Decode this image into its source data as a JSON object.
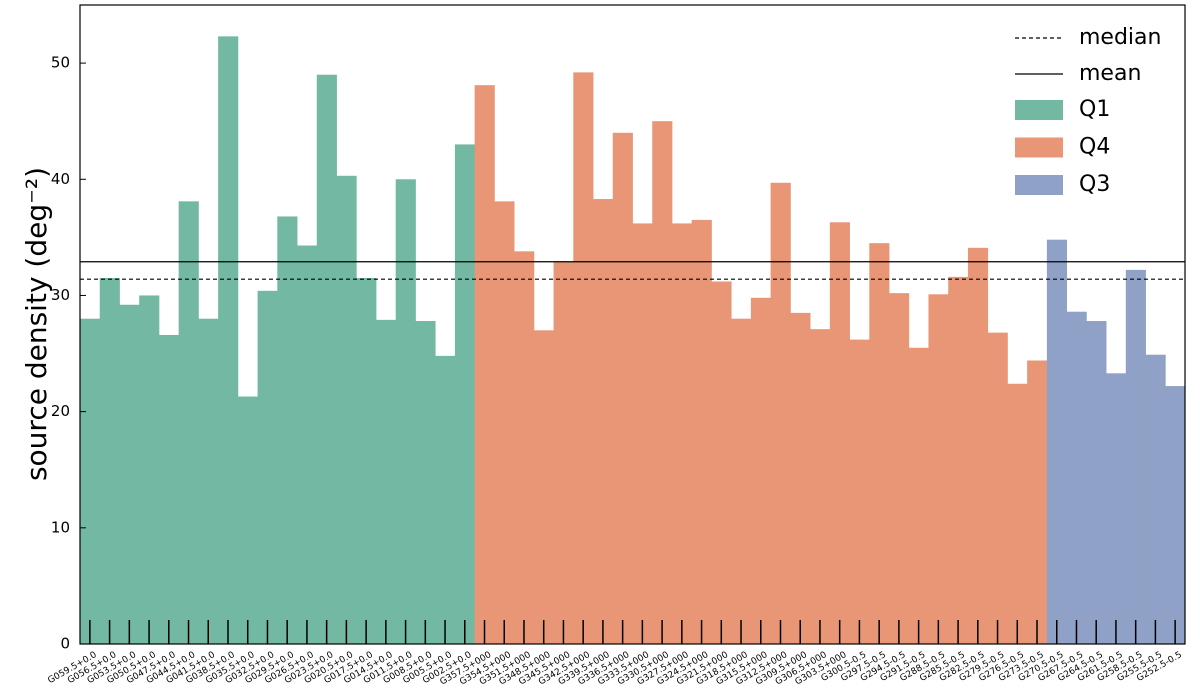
{
  "chart_data": {
    "type": "bar",
    "ylabel": "source density (deg⁻²)",
    "categories": [
      "G059.5+0.0",
      "G056.5+0.0",
      "G053.5+0.0",
      "G050.5+0.0",
      "G047.5+0.0",
      "G044.5+0.0",
      "G041.5+0.0",
      "G038.5+0.0",
      "G035.5+0.0",
      "G032.5+0.0",
      "G029.5+0.0",
      "G026.5+0.0",
      "G023.5+0.0",
      "G020.5+0.0",
      "G017.5+0.0",
      "G014.5+0.0",
      "G011.5+0.0",
      "G008.5+0.0",
      "G005.5+0.0",
      "G002.5+0.0",
      "G357.5+000",
      "G354.5+000",
      "G351.5+000",
      "G348.5+000",
      "G345.5+000",
      "G342.5+000",
      "G339.5+000",
      "G336.5+000",
      "G333.5+000",
      "G330.5+000",
      "G327.5+000",
      "G324.5+000",
      "G321.5+000",
      "G318.5+000",
      "G315.5+000",
      "G312.5+000",
      "G309.5+000",
      "G306.5+000",
      "G303.5+000",
      "G300.5-0.5",
      "G297.5-0.5",
      "G294.5-0.5",
      "G291.5-0.5",
      "G288.5-0.5",
      "G285.5-0.5",
      "G282.5-0.5",
      "G279.5-0.5",
      "G276.5-0.5",
      "G273.5-0.5",
      "G270.5-0.5",
      "G267.5-0.5",
      "G264.5-0.5",
      "G261.5-0.5",
      "G258.5-0.5",
      "G255.5-0.5",
      "G252.5-0.5"
    ],
    "series": [
      {
        "name": "Q1",
        "color": "#72b8a2",
        "values": [
          28.0,
          31.5,
          29.2,
          30.0,
          26.6,
          38.1,
          28.0,
          52.3,
          21.3,
          30.4,
          36.8,
          34.3,
          49.0,
          40.3,
          31.5,
          27.9,
          40.0,
          27.8,
          24.8,
          43.0,
          null,
          null,
          null,
          null,
          null,
          null,
          null,
          null,
          null,
          null,
          null,
          null,
          null,
          null,
          null,
          null,
          null,
          null,
          null,
          null,
          null,
          null,
          null,
          null,
          null,
          null,
          null,
          null,
          null,
          null,
          null,
          null,
          null,
          null,
          null,
          null
        ]
      },
      {
        "name": "Q4",
        "color": "#e99676",
        "values": [
          null,
          null,
          null,
          null,
          null,
          null,
          null,
          null,
          null,
          null,
          null,
          null,
          null,
          null,
          null,
          null,
          null,
          null,
          null,
          null,
          48.1,
          38.1,
          33.8,
          27.0,
          32.9,
          49.2,
          38.3,
          44.0,
          36.2,
          45.0,
          36.2,
          36.5,
          31.2,
          28.0,
          29.8,
          39.7,
          28.5,
          27.1,
          36.3,
          26.2,
          34.5,
          30.2,
          25.5,
          30.1,
          31.6,
          34.1,
          26.8,
          22.4,
          24.4,
          null,
          null,
          null,
          null,
          null,
          null,
          null
        ]
      },
      {
        "name": "Q3",
        "color": "#8fa1c6",
        "values": [
          null,
          null,
          null,
          null,
          null,
          null,
          null,
          null,
          null,
          null,
          null,
          null,
          null,
          null,
          null,
          null,
          null,
          null,
          null,
          null,
          null,
          null,
          null,
          null,
          null,
          null,
          null,
          null,
          null,
          null,
          null,
          null,
          null,
          null,
          null,
          null,
          null,
          null,
          null,
          null,
          null,
          null,
          null,
          null,
          null,
          null,
          null,
          null,
          null,
          34.8,
          28.6,
          27.8,
          23.3,
          32.2,
          24.9,
          22.2
        ]
      }
    ],
    "reference_lines": [
      {
        "name": "median",
        "value": 31.4,
        "style": "dashed"
      },
      {
        "name": "mean",
        "value": 32.9,
        "style": "solid"
      }
    ],
    "ylim": [
      0,
      55
    ],
    "yticks": [
      0,
      10,
      20,
      30,
      40,
      50
    ],
    "legend": "upper right"
  }
}
